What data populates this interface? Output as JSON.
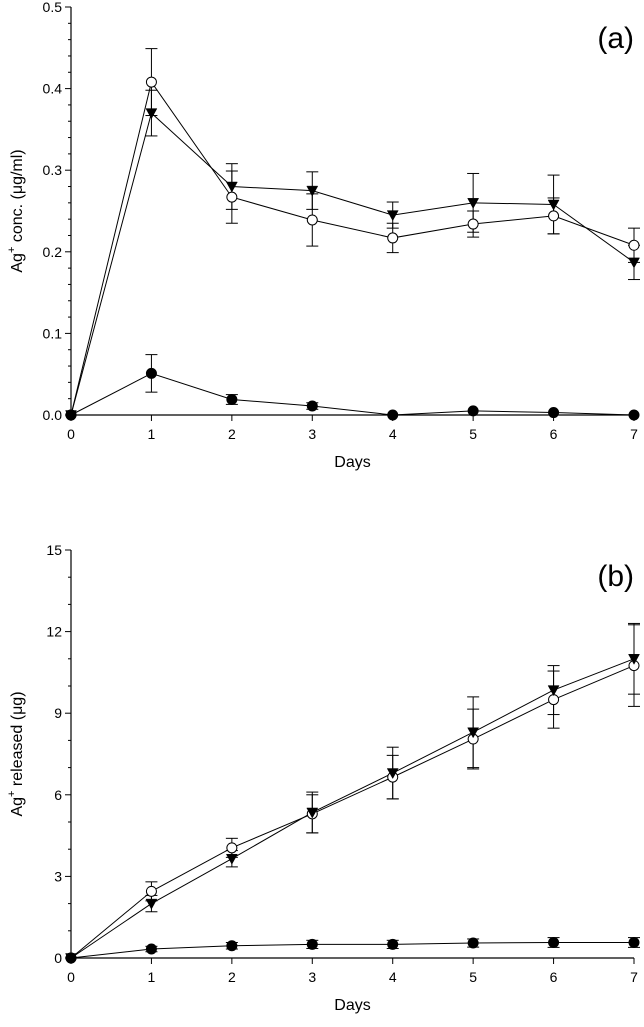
{
  "chart_data": [
    {
      "type": "line",
      "panel_label": "(a)",
      "xlabel": "Days",
      "ylabel_main": "Ag",
      "ylabel_sup": "+",
      "ylabel_rest": " conc. (μg/ml)",
      "xlim": [
        0,
        7
      ],
      "ylim": [
        0,
        0.5
      ],
      "xticks": [
        "0",
        "1",
        "2",
        "3",
        "4",
        "5",
        "6",
        "7"
      ],
      "yticks": [
        "0.0",
        "0.1",
        "0.2",
        "0.3",
        "0.4",
        "0.5"
      ],
      "x": [
        0,
        1,
        2,
        3,
        4,
        5,
        6,
        7
      ],
      "series": [
        {
          "marker": "open-circle",
          "values": [
            0,
            0.408,
            0.267,
            0.239,
            0.217,
            0.234,
            0.244,
            0.208
          ],
          "errors": [
            0,
            0.041,
            0.032,
            0.032,
            0.018,
            0.016,
            0.022,
            0.021
          ]
        },
        {
          "marker": "filled-triangle-down",
          "values": [
            0,
            0.37,
            0.28,
            0.275,
            0.245,
            0.26,
            0.258,
            0.187
          ],
          "errors": [
            0,
            0.028,
            0.028,
            0.023,
            0.016,
            0.036,
            0.036,
            0.021
          ]
        },
        {
          "marker": "filled-circle",
          "values": [
            0,
            0.051,
            0.019,
            0.011,
            0,
            0.005,
            0.003,
            0
          ],
          "errors": [
            0,
            0.023,
            0.006,
            0.004,
            0,
            0,
            0,
            0
          ]
        }
      ]
    },
    {
      "type": "line",
      "panel_label": "(b)",
      "xlabel": "Days",
      "ylabel_main": "Ag",
      "ylabel_sup": "+",
      "ylabel_rest": " released (μg)",
      "xlim": [
        0,
        7
      ],
      "ylim": [
        0,
        15
      ],
      "xticks": [
        "0",
        "1",
        "2",
        "3",
        "4",
        "5",
        "6",
        "7"
      ],
      "yticks": [
        "0",
        "3",
        "6",
        "9",
        "12",
        "15"
      ],
      "x": [
        0,
        1,
        2,
        3,
        4,
        5,
        6,
        7
      ],
      "series": [
        {
          "marker": "open-circle",
          "values": [
            0,
            2.45,
            4.05,
            5.3,
            6.65,
            8.05,
            9.5,
            10.75
          ],
          "errors": [
            0,
            0.35,
            0.35,
            0.7,
            0.8,
            1.1,
            1.05,
            1.5
          ]
        },
        {
          "marker": "filled-triangle-down",
          "values": [
            0,
            2.0,
            3.65,
            5.35,
            6.8,
            8.3,
            9.85,
            11.0
          ],
          "errors": [
            0,
            0.3,
            0.3,
            0.75,
            0.95,
            1.3,
            0.9,
            1.3
          ]
        },
        {
          "marker": "filled-circle",
          "values": [
            0,
            0.33,
            0.45,
            0.5,
            0.5,
            0.55,
            0.57,
            0.57
          ],
          "errors": [
            0,
            0.1,
            0.12,
            0.15,
            0.15,
            0.15,
            0.18,
            0.18
          ]
        }
      ]
    }
  ]
}
